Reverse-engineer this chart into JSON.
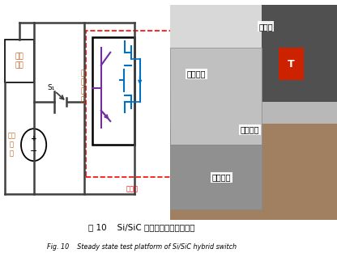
{
  "title_cn": "图 10    Si/SiC 混合器件稳态测试平台",
  "title_en": "Fig. 10    Steady state test platform of Si/SiC hybrid switch",
  "bg_color": "#ffffff",
  "fig_width": 4.16,
  "fig_height": 3.13,
  "dpi": 100,
  "label_dianzi_fuzai_box": "电子\n负载",
  "label_zhiliu_dianyuan": "直流\n电\n源",
  "label_hunhe_qijian": "混\n合\n器\n件",
  "label_henwenxiang_red": "恒温箱",
  "label_S1": "S₁",
  "label_r_henwenxiang": "恒温箱",
  "label_r_fuzhu": "辅助电源",
  "label_r_dianzi": "电子负载",
  "label_r_zhiliu": "直流电源",
  "igbt_color": "#7030a0",
  "mosfet_color": "#0070c0",
  "red_dash_color": "#ff0000",
  "circuit_color": "#404040",
  "label_orange": "#c55a11"
}
